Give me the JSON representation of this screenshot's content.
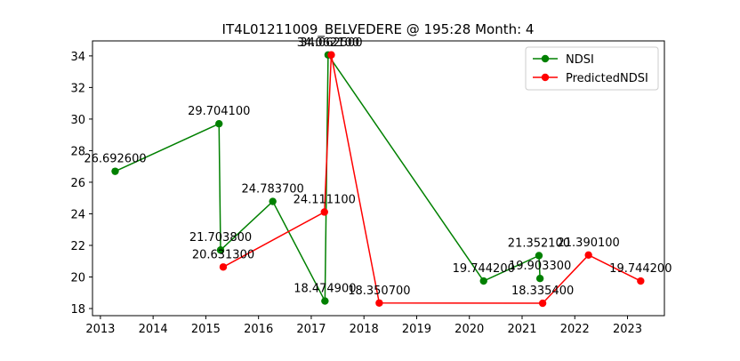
{
  "chart_data": {
    "type": "line",
    "title": "IT4L01211009_BELVEDERE @ 195:28 Month: 4",
    "xlabel": "",
    "ylabel": "",
    "xlim": [
      2012.85,
      2023.7
    ],
    "ylim": [
      17.55,
      34.95
    ],
    "x_ticks": [
      2013,
      2014,
      2015,
      2016,
      2017,
      2018,
      2019,
      2020,
      2021,
      2022,
      2023
    ],
    "y_ticks": [
      18,
      20,
      22,
      24,
      26,
      28,
      30,
      32,
      34
    ],
    "grid": false,
    "legend_position": "top-right",
    "series": [
      {
        "name": "NDSI",
        "color": "#008000",
        "points": [
          {
            "x": 2013.28,
            "y": 26.6926,
            "label": "26.692600"
          },
          {
            "x": 2015.25,
            "y": 29.7041,
            "label": "29.704100"
          },
          {
            "x": 2015.28,
            "y": 21.7038,
            "label": "21.703800"
          },
          {
            "x": 2016.27,
            "y": 24.7837,
            "label": "24.783700"
          },
          {
            "x": 2017.26,
            "y": 18.4749,
            "label": "18.474900"
          },
          {
            "x": 2017.32,
            "y": 34.0621,
            "label": "34.062100"
          },
          {
            "x": 2020.27,
            "y": 19.7442,
            "label": "19.744200"
          },
          {
            "x": 2021.32,
            "y": 21.3521,
            "label": "21.352100"
          },
          {
            "x": 2021.34,
            "y": 19.9033,
            "label": "19.903300"
          }
        ]
      },
      {
        "name": "PredictedNDSI",
        "color": "#ff0000",
        "points": [
          {
            "x": 2015.33,
            "y": 20.6313,
            "label": "20.631300"
          },
          {
            "x": 2017.25,
            "y": 24.1111,
            "label": "24.111100"
          },
          {
            "x": 2017.38,
            "y": 34.0625,
            "label": "34.062500"
          },
          {
            "x": 2018.29,
            "y": 18.3507,
            "label": "18.350700"
          },
          {
            "x": 2021.39,
            "y": 18.3354,
            "label": "18.335400"
          },
          {
            "x": 2022.26,
            "y": 21.3901,
            "label": "21.390100"
          },
          {
            "x": 2023.25,
            "y": 19.7442,
            "label": "19.744200"
          }
        ]
      }
    ]
  }
}
